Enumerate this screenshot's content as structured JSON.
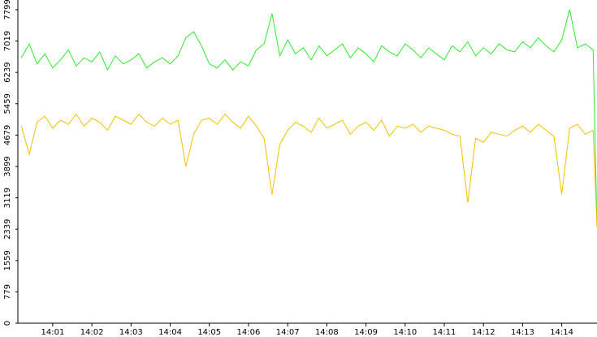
{
  "chart_data": {
    "type": "line",
    "x": [
      0.2,
      0.4,
      0.6,
      0.8,
      1.0,
      1.2,
      1.4,
      1.6,
      1.8,
      2.0,
      2.2,
      2.4,
      2.6,
      2.8,
      3.0,
      3.2,
      3.4,
      3.6,
      3.8,
      4.0,
      4.2,
      4.4,
      4.6,
      4.8,
      5.0,
      5.2,
      5.4,
      5.6,
      5.8,
      6.0,
      6.2,
      6.4,
      6.6,
      6.8,
      7.0,
      7.2,
      7.4,
      7.6,
      7.8,
      8.0,
      8.2,
      8.4,
      8.6,
      8.8,
      9.0,
      9.2,
      9.4,
      9.6,
      9.8,
      10.0,
      10.2,
      10.4,
      10.6,
      10.8,
      11.0,
      11.2,
      11.4,
      11.6,
      11.8,
      12.0,
      12.2,
      12.4,
      12.6,
      12.8,
      13.0,
      13.2,
      13.4,
      13.6,
      13.8,
      14.0,
      14.2,
      14.4,
      14.6,
      14.8,
      14.9
    ],
    "series": [
      {
        "color": "#2ee82e",
        "values": [
          6600,
          6950,
          6450,
          6700,
          6350,
          6550,
          6800,
          6400,
          6600,
          6500,
          6750,
          6300,
          6650,
          6450,
          6550,
          6700,
          6350,
          6500,
          6600,
          6450,
          6650,
          7100,
          7250,
          6900,
          6450,
          6350,
          6550,
          6300,
          6500,
          6400,
          6800,
          6950,
          7700,
          6650,
          7050,
          6700,
          6850,
          6550,
          6900,
          6650,
          6800,
          6950,
          6600,
          6850,
          6700,
          6500,
          6900,
          6750,
          6650,
          6950,
          6800,
          6600,
          6850,
          6700,
          6550,
          6900,
          6750,
          7000,
          6650,
          6850,
          6700,
          6950,
          6800,
          6750,
          7000,
          6850,
          7100,
          6900,
          6750,
          7050,
          7799,
          6850,
          6950,
          6800,
          2400
        ]
      },
      {
        "color": "#f5c000",
        "values": [
          4900,
          4200,
          5000,
          5150,
          4850,
          5050,
          4950,
          5200,
          4900,
          5100,
          5000,
          4800,
          5150,
          5050,
          4950,
          5200,
          5000,
          4900,
          5100,
          4950,
          5050,
          3900,
          4700,
          5050,
          5100,
          4950,
          5200,
          5000,
          4850,
          5150,
          4900,
          4600,
          3200,
          4450,
          4800,
          5000,
          4900,
          4750,
          5100,
          4850,
          4950,
          5050,
          4700,
          4900,
          5000,
          4800,
          5050,
          4650,
          4900,
          4850,
          4950,
          4750,
          4900,
          4850,
          4800,
          4700,
          4650,
          3000,
          4600,
          4500,
          4750,
          4700,
          4650,
          4800,
          4900,
          4750,
          4950,
          4800,
          4650,
          3200,
          4850,
          4950,
          4700,
          4800,
          2400
        ]
      }
    ],
    "xlim": [
      0.11,
      14.9
    ],
    "xticks": [
      {
        "value": 1,
        "label": "14:01"
      },
      {
        "value": 2,
        "label": "14:02"
      },
      {
        "value": 3,
        "label": "14:03"
      },
      {
        "value": 4,
        "label": "14:04"
      },
      {
        "value": 5,
        "label": "14:05"
      },
      {
        "value": 6,
        "label": "14:06"
      },
      {
        "value": 7,
        "label": "14:07"
      },
      {
        "value": 8,
        "label": "14:08"
      },
      {
        "value": 9,
        "label": "14:09"
      },
      {
        "value": 10,
        "label": "14:10"
      },
      {
        "value": 11,
        "label": "14:11"
      },
      {
        "value": 12,
        "label": "14:12"
      },
      {
        "value": 13,
        "label": "14:13"
      },
      {
        "value": 14,
        "label": "14:14"
      }
    ],
    "ylim": [
      0,
      8040
    ],
    "yticks": [
      0,
      779,
      1559,
      2339,
      3119,
      3899,
      4679,
      5459,
      6239,
      7019,
      7799
    ],
    "grid": false
  }
}
